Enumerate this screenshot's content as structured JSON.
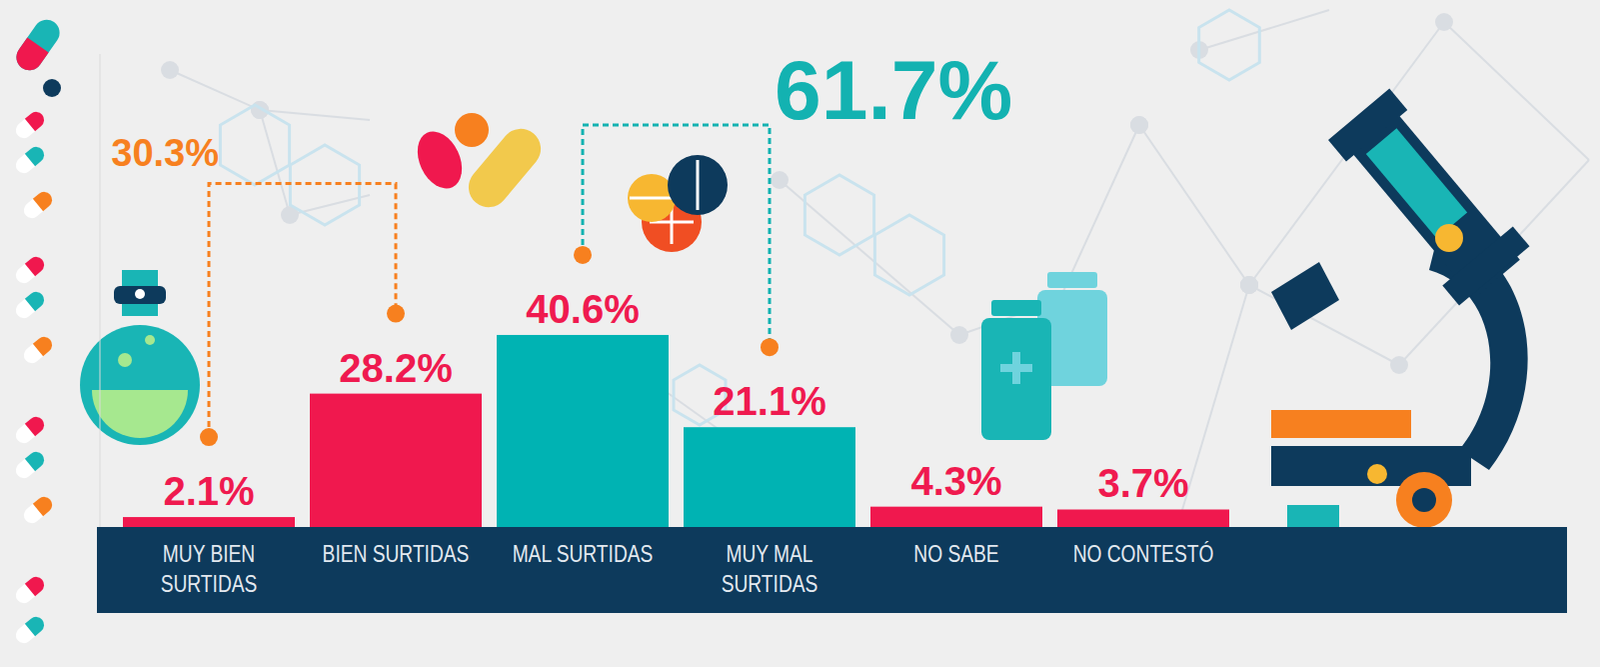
{
  "chart_data": {
    "type": "bar",
    "categories": [
      "MUY BIEN SURTIDAS",
      "BIEN SURTIDAS",
      "MAL SURTIDAS",
      "MUY MAL SURTIDAS",
      "NO SABE",
      "NO CONTESTÓ"
    ],
    "values": [
      2.1,
      28.2,
      40.6,
      21.1,
      4.3,
      3.7
    ],
    "value_labels": [
      "2.1%",
      "28.2%",
      "40.6%",
      "21.1%",
      "4.3%",
      "3.7%"
    ],
    "colors": [
      "#f0184e",
      "#f0184e",
      "#00b3b3",
      "#00b3b3",
      "#f0184e",
      "#f0184e"
    ],
    "ylim": [
      0,
      100
    ],
    "grid": false,
    "data_labels": true,
    "tick_labels": "x",
    "annotations": [
      {
        "text": "30.3%",
        "spans": [
          "MUY BIEN SURTIDAS",
          "BIEN SURTIDAS"
        ],
        "color": "#f7801f"
      },
      {
        "text": "61.7%",
        "spans": [
          "MAL SURTIDAS",
          "MUY MAL SURTIDAS"
        ],
        "color": "#13b2b1"
      }
    ]
  }
}
